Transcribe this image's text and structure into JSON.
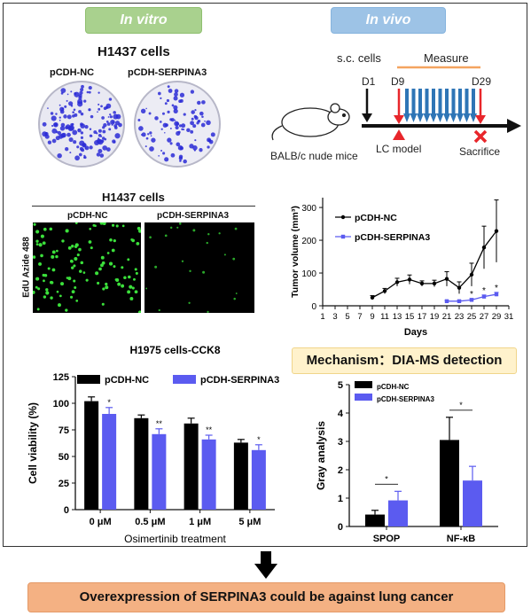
{
  "badges": {
    "in_vitro": "In vitro",
    "in_vivo": "In vivo"
  },
  "colony": {
    "title": "H1437 cells",
    "labels": [
      "pCDH-NC",
      "pCDH-SERPINA3"
    ]
  },
  "edu": {
    "title": "H1437 cells",
    "labels": [
      "pCDH-NC",
      "pCDH-SERPINA3"
    ],
    "ylabel": "EdU Azide 488"
  },
  "vivo": {
    "sc_cells": "s.c. cells",
    "measure": "Measure",
    "d1": "D1",
    "d9": "D9",
    "d29": "D29",
    "mice": "BALB/c nude mice",
    "lc_model": "LC model",
    "sacrifice": "Sacrifice"
  },
  "mechanism": "Mechanism：DIA-MS detection",
  "conclusion": "Overexpression of SERPINA3 could be against lung cancer",
  "colors": {
    "nc": "#000000",
    "serpina3": "#5b5bf0",
    "red": "#e8262b",
    "blue": "#2e75b6",
    "measure_line": "#f4a460"
  },
  "chart_data": [
    {
      "type": "line",
      "xlabel": "Days",
      "ylabel": "Tumor volume (mm³)",
      "x_ticks": [
        "1",
        "3",
        "5",
        "7",
        "9",
        "11",
        "13",
        "15",
        "17",
        "19",
        "21",
        "23",
        "25",
        "27",
        "29",
        "31"
      ],
      "y_ticks": [
        "0",
        "100",
        "200",
        "300"
      ],
      "xlim": [
        1,
        31
      ],
      "ylim": [
        0,
        330
      ],
      "series": [
        {
          "name": "pCDH-NC",
          "x": [
            9,
            11,
            13,
            15,
            17,
            19,
            21,
            23,
            25,
            27,
            29
          ],
          "y": [
            25,
            45,
            72,
            80,
            68,
            68,
            82,
            55,
            95,
            178,
            228
          ],
          "err": [
            6,
            8,
            12,
            14,
            8,
            10,
            22,
            18,
            35,
            65,
            95
          ]
        },
        {
          "name": "pCDH-SERPINA3",
          "x": [
            21,
            23,
            25,
            27,
            29
          ],
          "y": [
            14,
            14,
            18,
            28,
            35
          ],
          "err": [
            2,
            2,
            4,
            5,
            6
          ]
        }
      ],
      "annotations": [
        "*",
        "*",
        "*"
      ]
    },
    {
      "type": "bar",
      "title": "H1975 cells-CCK8",
      "xlabel": "Osimertinib treatment",
      "ylabel": "Cell viability (%)",
      "categories": [
        "0 μM",
        "0.5 μM",
        "1 μM",
        "5 μM"
      ],
      "y_ticks": [
        "0",
        "25",
        "50",
        "75",
        "100",
        "125"
      ],
      "ylim": [
        0,
        125
      ],
      "series": [
        {
          "name": "pCDH-NC",
          "values": [
            102,
            86,
            81,
            63
          ],
          "err": [
            4,
            3,
            5,
            3
          ]
        },
        {
          "name": "pCDH-SERPINA3",
          "values": [
            90,
            71,
            66,
            56
          ],
          "err": [
            6,
            5,
            4,
            5
          ]
        }
      ],
      "significance": [
        "*",
        "**",
        "**",
        "*"
      ]
    },
    {
      "type": "bar",
      "xlabel": "",
      "ylabel": "Gray analysis",
      "categories": [
        "SPOP",
        "NF-κB"
      ],
      "y_ticks": [
        "0",
        "1",
        "2",
        "3",
        "4",
        "5"
      ],
      "ylim": [
        0,
        5
      ],
      "series": [
        {
          "name": "pCDH-NC",
          "values": [
            0.42,
            3.05
          ],
          "err": [
            0.15,
            0.8
          ]
        },
        {
          "name": "pCDH-SERPINA3",
          "values": [
            0.92,
            1.62
          ],
          "err": [
            0.32,
            0.5
          ]
        }
      ],
      "significance": [
        "*",
        "*"
      ]
    }
  ]
}
